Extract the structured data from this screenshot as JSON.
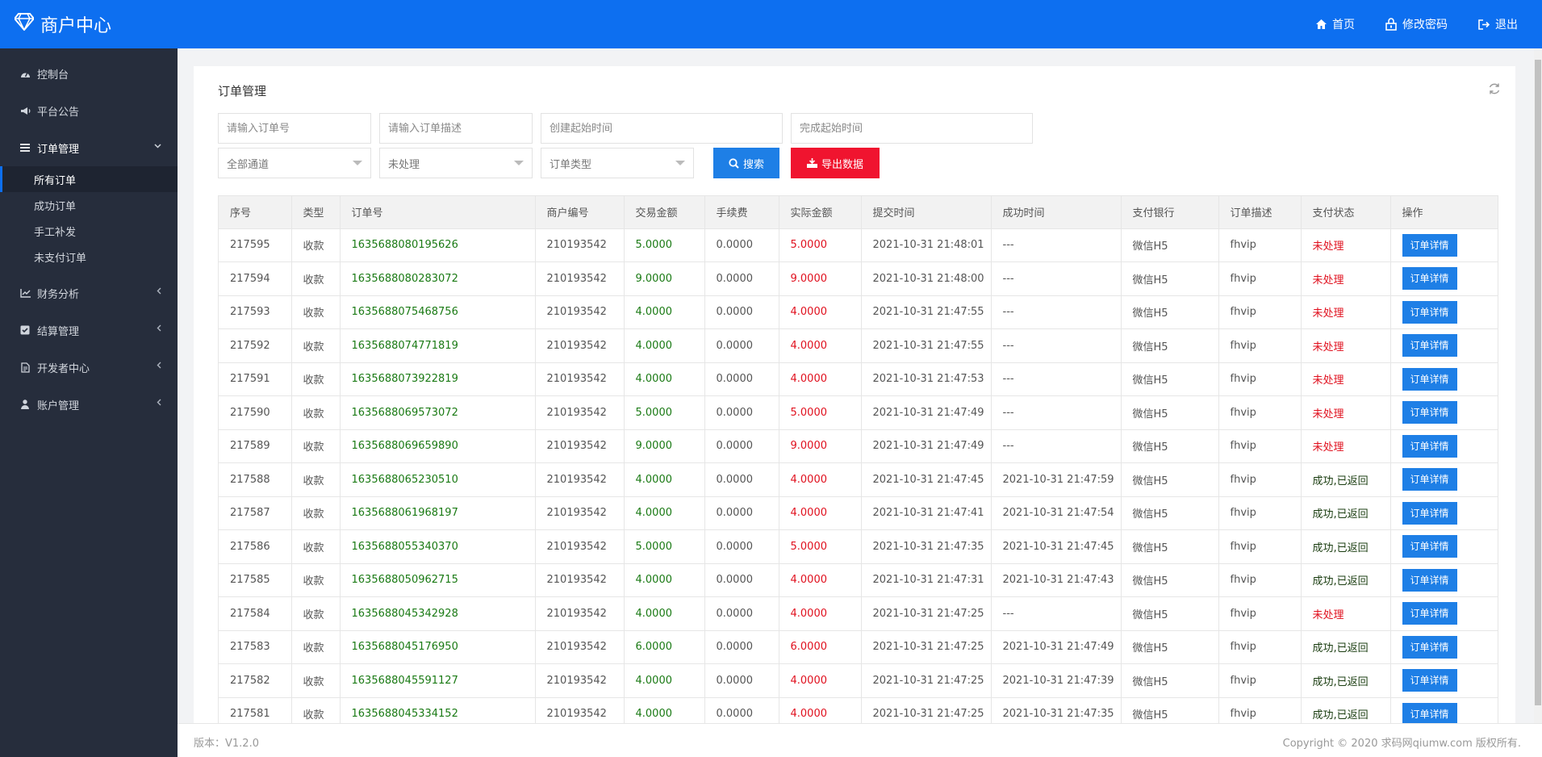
{
  "header": {
    "brand": "商户中心",
    "nav": [
      {
        "label": "首页",
        "icon": "home-icon"
      },
      {
        "label": "修改密码",
        "icon": "lock-icon"
      },
      {
        "label": "退出",
        "icon": "logout-icon"
      }
    ]
  },
  "sidebar": {
    "items": [
      {
        "label": "控制台",
        "icon": "dashboard-icon"
      },
      {
        "label": "平台公告",
        "icon": "megaphone-icon"
      },
      {
        "label": "订单管理",
        "icon": "list-icon",
        "expanded": true
      },
      {
        "label": "财务分析",
        "icon": "chart-icon"
      },
      {
        "label": "结算管理",
        "icon": "checkbox-icon"
      },
      {
        "label": "开发者中心",
        "icon": "document-icon"
      },
      {
        "label": "账户管理",
        "icon": "user-icon"
      }
    ],
    "submenu": [
      {
        "label": "所有订单",
        "active": true
      },
      {
        "label": "成功订单"
      },
      {
        "label": "手工补发"
      },
      {
        "label": "未支付订单"
      }
    ]
  },
  "page": {
    "title": "订单管理",
    "filters": {
      "order_no_placeholder": "请输入订单号",
      "order_desc_placeholder": "请输入订单描述",
      "create_time_placeholder": "创建起始时间",
      "finish_time_placeholder": "完成起始时间",
      "channel_select": "全部通道",
      "status_select": "未处理",
      "type_select": "订单类型"
    },
    "search_label": "搜索",
    "export_label": "导出数据"
  },
  "table": {
    "columns": [
      "序号",
      "类型",
      "订单号",
      "商户编号",
      "交易金额",
      "手续费",
      "实际金额",
      "提交时间",
      "成功时间",
      "支付银行",
      "订单描述",
      "支付状态",
      "操作"
    ],
    "action_label": "订单详情",
    "rows": [
      [
        "217595",
        "收款",
        "1635688080195626",
        "210193542",
        "5.0000",
        "0.0000",
        "5.0000",
        "2021-10-31 21:48:01",
        "---",
        "微信H5",
        "fhvip",
        "未处理"
      ],
      [
        "217594",
        "收款",
        "1635688080283072",
        "210193542",
        "9.0000",
        "0.0000",
        "9.0000",
        "2021-10-31 21:48:00",
        "---",
        "微信H5",
        "fhvip",
        "未处理"
      ],
      [
        "217593",
        "收款",
        "1635688075468756",
        "210193542",
        "4.0000",
        "0.0000",
        "4.0000",
        "2021-10-31 21:47:55",
        "---",
        "微信H5",
        "fhvip",
        "未处理"
      ],
      [
        "217592",
        "收款",
        "1635688074771819",
        "210193542",
        "4.0000",
        "0.0000",
        "4.0000",
        "2021-10-31 21:47:55",
        "---",
        "微信H5",
        "fhvip",
        "未处理"
      ],
      [
        "217591",
        "收款",
        "1635688073922819",
        "210193542",
        "4.0000",
        "0.0000",
        "4.0000",
        "2021-10-31 21:47:53",
        "---",
        "微信H5",
        "fhvip",
        "未处理"
      ],
      [
        "217590",
        "收款",
        "1635688069573072",
        "210193542",
        "5.0000",
        "0.0000",
        "5.0000",
        "2021-10-31 21:47:49",
        "---",
        "微信H5",
        "fhvip",
        "未处理"
      ],
      [
        "217589",
        "收款",
        "1635688069659890",
        "210193542",
        "9.0000",
        "0.0000",
        "9.0000",
        "2021-10-31 21:47:49",
        "---",
        "微信H5",
        "fhvip",
        "未处理"
      ],
      [
        "217588",
        "收款",
        "1635688065230510",
        "210193542",
        "4.0000",
        "0.0000",
        "4.0000",
        "2021-10-31 21:47:45",
        "2021-10-31 21:47:59",
        "微信H5",
        "fhvip",
        "成功,已返回"
      ],
      [
        "217587",
        "收款",
        "1635688061968197",
        "210193542",
        "4.0000",
        "0.0000",
        "4.0000",
        "2021-10-31 21:47:41",
        "2021-10-31 21:47:54",
        "微信H5",
        "fhvip",
        "成功,已返回"
      ],
      [
        "217586",
        "收款",
        "1635688055340370",
        "210193542",
        "5.0000",
        "0.0000",
        "5.0000",
        "2021-10-31 21:47:35",
        "2021-10-31 21:47:45",
        "微信H5",
        "fhvip",
        "成功,已返回"
      ],
      [
        "217585",
        "收款",
        "1635688050962715",
        "210193542",
        "4.0000",
        "0.0000",
        "4.0000",
        "2021-10-31 21:47:31",
        "2021-10-31 21:47:43",
        "微信H5",
        "fhvip",
        "成功,已返回"
      ],
      [
        "217584",
        "收款",
        "1635688045342928",
        "210193542",
        "4.0000",
        "0.0000",
        "4.0000",
        "2021-10-31 21:47:25",
        "---",
        "微信H5",
        "fhvip",
        "未处理"
      ],
      [
        "217583",
        "收款",
        "1635688045176950",
        "210193542",
        "6.0000",
        "0.0000",
        "6.0000",
        "2021-10-31 21:47:25",
        "2021-10-31 21:47:49",
        "微信H5",
        "fhvip",
        "成功,已返回"
      ],
      [
        "217582",
        "收款",
        "1635688045591127",
        "210193542",
        "4.0000",
        "0.0000",
        "4.0000",
        "2021-10-31 21:47:25",
        "2021-10-31 21:47:39",
        "微信H5",
        "fhvip",
        "成功,已返回"
      ],
      [
        "217581",
        "收款",
        "1635688045334152",
        "210193542",
        "4.0000",
        "0.0000",
        "4.0000",
        "2021-10-31 21:47:25",
        "2021-10-31 21:47:35",
        "微信H5",
        "fhvip",
        "成功,已返回"
      ]
    ]
  },
  "footer": {
    "version": "版本：V1.2.0",
    "copyright": "Copyright © 2020 求码网qiumw.com 版权所有."
  },
  "colors": {
    "primary": "#0d6ff0",
    "sidebar": "#262d3c",
    "danger": "#f0142f",
    "amount_green": "#1a7a14",
    "amount_red": "#e0101e"
  }
}
